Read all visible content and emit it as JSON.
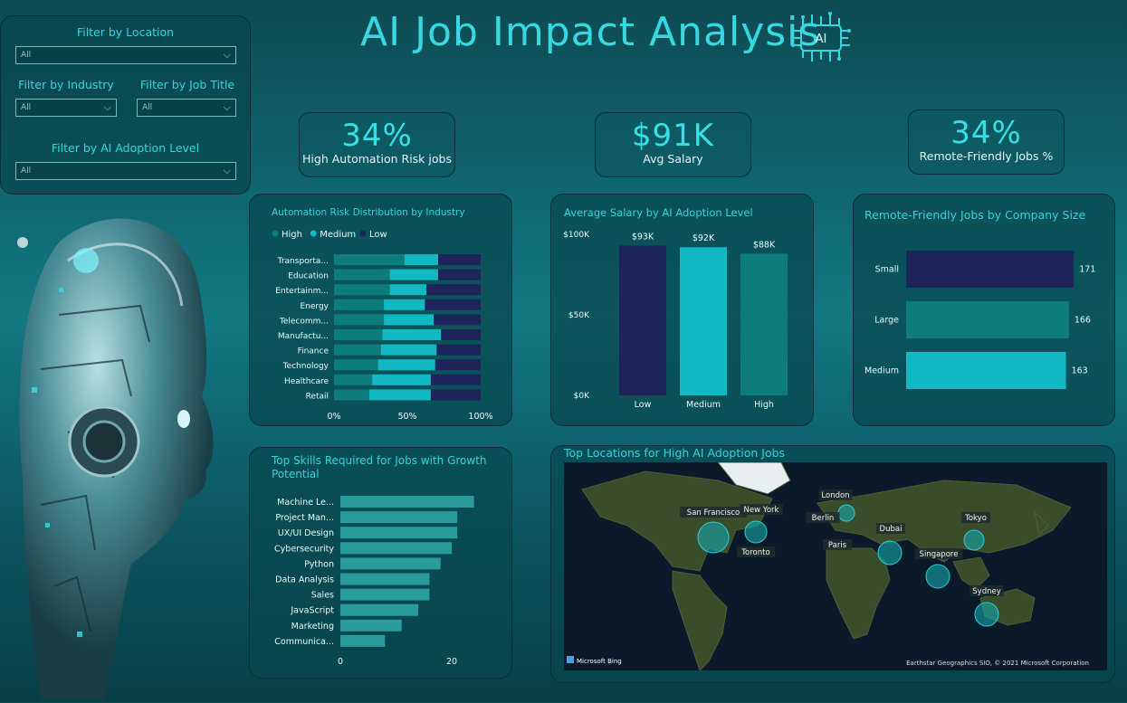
{
  "header": {
    "title": "AI Job Impact Analysis",
    "logo_text": "AI"
  },
  "filters": {
    "location": {
      "label": "Filter by Location",
      "value": "All"
    },
    "industry": {
      "label": "Filter by Industry",
      "value": "All"
    },
    "job_title": {
      "label": "Filter by Job Title",
      "value": "All"
    },
    "ai_adoption": {
      "label": "Filter by AI Adoption Level",
      "value": "All"
    }
  },
  "kpis": [
    {
      "value": "34%",
      "caption": "High Automation Risk jobs"
    },
    {
      "value": "$91K",
      "caption": "Avg Salary"
    },
    {
      "value": "34%",
      "caption": "Remote-Friendly Jobs %"
    }
  ],
  "colors": {
    "high": "#0e7c7a",
    "medium": "#12b9c3",
    "low": "#1c2459",
    "bar_teal": "#2a9b9b"
  },
  "chart_data": [
    {
      "type": "bar",
      "orientation": "horizontal-stacked-100",
      "title": "Automation Risk Distribution by Industry",
      "categories": [
        "Transporta...",
        "Education",
        "Entertainm...",
        "Energy",
        "Telecomm...",
        "Manufactu...",
        "Finance",
        "Technology",
        "Healthcare",
        "Retail"
      ],
      "series": [
        {
          "name": "High",
          "values": [
            48,
            38,
            38,
            34,
            34,
            33,
            32,
            30,
            26,
            24
          ]
        },
        {
          "name": "Medium",
          "values": [
            23,
            33,
            25,
            28,
            34,
            40,
            38,
            39,
            40,
            42
          ]
        },
        {
          "name": "Low",
          "values": [
            29,
            29,
            37,
            38,
            32,
            27,
            30,
            31,
            34,
            34
          ]
        }
      ],
      "xticks": [
        "0%",
        "50%",
        "100%"
      ],
      "xlim": [
        0,
        100
      ],
      "legend": "top-left"
    },
    {
      "type": "bar",
      "title": "Average Salary by AI Adoption Level",
      "categories": [
        "Low",
        "Medium",
        "High"
      ],
      "values": [
        93,
        92,
        88
      ],
      "data_labels": [
        "$93K",
        "$92K",
        "$88K"
      ],
      "yticks": [
        "$0K",
        "$50K",
        "$100K"
      ],
      "ylim": [
        0,
        100
      ]
    },
    {
      "type": "bar",
      "orientation": "horizontal",
      "title": "Remote-Friendly Jobs by Company Size",
      "categories": [
        "Small",
        "Large",
        "Medium"
      ],
      "values": [
        171,
        166,
        163
      ],
      "data_labels": [
        "171",
        "166",
        "163"
      ],
      "xlim": [
        0,
        180
      ]
    },
    {
      "type": "bar",
      "orientation": "horizontal",
      "title": "Top Skills Required for Jobs with Growth Potential",
      "categories": [
        "Machine Le...",
        "Project Man...",
        "UX/UI Design",
        "Cybersecurity",
        "Python",
        "Data Analysis",
        "Sales",
        "JavaScript",
        "Marketing",
        "Communica..."
      ],
      "values": [
        24,
        21,
        21,
        20,
        18,
        16,
        16,
        14,
        11,
        8
      ],
      "xticks": [
        "0",
        "20"
      ],
      "xlim": [
        0,
        27
      ]
    }
  ],
  "map": {
    "title": "Top Locations for High AI Adoption Jobs",
    "cities": [
      "San Francisco",
      "New York",
      "Toronto",
      "London",
      "Berlin",
      "Paris",
      "Dubai",
      "Tokyo",
      "Singapore",
      "Sydney"
    ],
    "brand": "Microsoft Bing",
    "attribution": "Earthstar Geographics SIO, © 2021 Microsoft Corporation"
  }
}
